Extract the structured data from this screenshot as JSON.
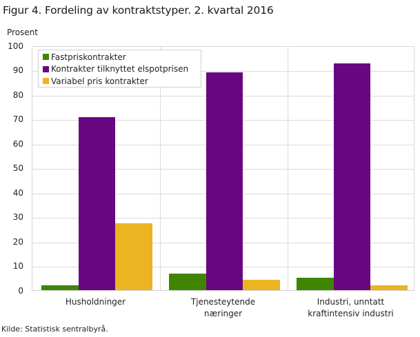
{
  "chart_data": {
    "type": "bar",
    "title": "Figur 4. Fordeling av kontraktstyper. 2. kvartal 2016",
    "ylabel": "Prosent",
    "xlabel": "",
    "ylim": [
      0,
      100
    ],
    "yticks": [
      0,
      10,
      20,
      30,
      40,
      50,
      60,
      70,
      80,
      90,
      100
    ],
    "grid": true,
    "legend_position": "top-left inside",
    "categories": [
      "Husholdninger",
      "Tjenesteytende næringer",
      "Industri, unntatt kraftintensiv industri"
    ],
    "category_labels": [
      [
        "Husholdninger"
      ],
      [
        "Tjenesteytende",
        "næringer"
      ],
      [
        "Industri, unntatt",
        "kraftintensiv industri"
      ]
    ],
    "series": [
      {
        "name": "Fastpriskontrakter",
        "color": "#3f8500",
        "values": [
          2.0,
          6.9,
          5.2
        ]
      },
      {
        "name": "Kontrakter tilknyttet elspotprisen",
        "color": "#680781",
        "values": [
          70.7,
          89.1,
          92.8
        ]
      },
      {
        "name": "Variabel pris kontrakter",
        "color": "#ebb420",
        "values": [
          27.4,
          4.1,
          1.9
        ]
      }
    ],
    "source": "Kilde: Statistisk sentralbyrå."
  }
}
